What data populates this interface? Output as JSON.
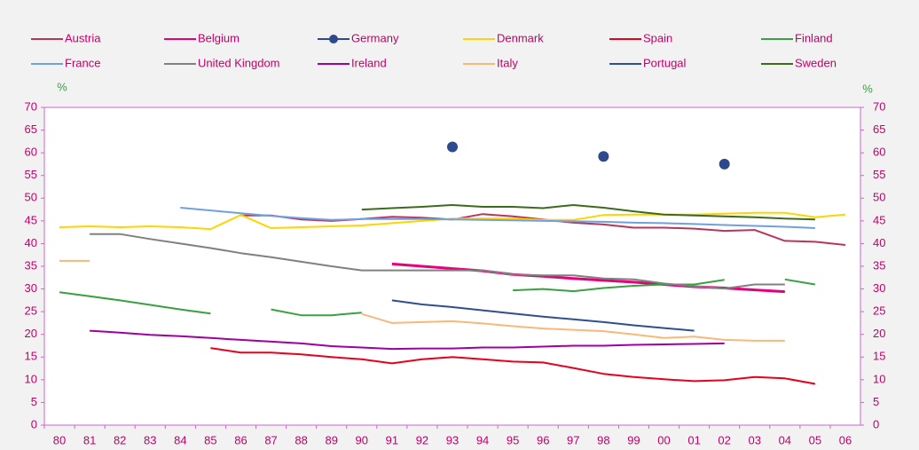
{
  "chart_data": {
    "type": "line",
    "categories": [
      "80",
      "81",
      "82",
      "83",
      "84",
      "85",
      "86",
      "87",
      "88",
      "89",
      "90",
      "91",
      "92",
      "93",
      "94",
      "95",
      "96",
      "97",
      "98",
      "99",
      "00",
      "01",
      "02",
      "03",
      "04",
      "05",
      "06"
    ],
    "y_label": "%",
    "y2_label": "%",
    "ylim": [
      0,
      70
    ],
    "yticks": [
      0,
      5,
      10,
      15,
      20,
      25,
      30,
      35,
      40,
      45,
      50,
      55,
      60,
      65,
      70
    ],
    "y2lim": [
      0,
      70
    ],
    "y2ticks": [
      0,
      5,
      10,
      15,
      20,
      25,
      30,
      35,
      40,
      45,
      50,
      55,
      60,
      65,
      70
    ],
    "series": [
      {
        "name": "Austria",
        "color": "#b8355e",
        "values": [
          null,
          null,
          null,
          null,
          null,
          null,
          46.2,
          46.2,
          45.3,
          45.0,
          45.4,
          45.9,
          45.7,
          45.3,
          46.5,
          46.0,
          45.3,
          44.6,
          44.2,
          43.5,
          43.5,
          43.3,
          42.8,
          43.0,
          40.6,
          40.4,
          39.7
        ]
      },
      {
        "name": "Belgium",
        "color": "#e6007e",
        "values": [
          null,
          null,
          null,
          null,
          null,
          null,
          null,
          null,
          null,
          null,
          null,
          35.5,
          35.0,
          34.5,
          34.0,
          33.2,
          32.8,
          32.3,
          31.9,
          31.5,
          31.0,
          30.5,
          30.2,
          29.8,
          29.4,
          null,
          null
        ]
      },
      {
        "name": "Germany",
        "color": "#2e4a8c",
        "marker": true,
        "line": false,
        "values": [
          null,
          null,
          null,
          null,
          null,
          null,
          null,
          null,
          null,
          null,
          null,
          null,
          null,
          61.3,
          null,
          null,
          null,
          null,
          59.2,
          null,
          null,
          null,
          57.5,
          null,
          null,
          null,
          null
        ]
      },
      {
        "name": "Denmark",
        "color": "#ffd400",
        "values": [
          43.6,
          43.8,
          43.6,
          43.8,
          43.6,
          43.2,
          46.3,
          43.4,
          43.6,
          43.8,
          44.0,
          44.5,
          45.0,
          45.5,
          45.5,
          45.5,
          45.2,
          45.2,
          46.3,
          46.4,
          46.4,
          46.4,
          46.6,
          46.8,
          46.8,
          45.8,
          46.4
        ]
      },
      {
        "name": "Spain",
        "color": "#e8001c",
        "values": [
          null,
          null,
          null,
          null,
          null,
          17.0,
          16.0,
          16.0,
          15.6,
          15.0,
          14.5,
          13.6,
          14.5,
          15.0,
          14.5,
          14.0,
          13.8,
          12.6,
          11.3,
          10.6,
          10.1,
          9.7,
          9.9,
          10.6,
          10.3,
          9.1,
          null
        ]
      },
      {
        "name": "Finland",
        "color": "#3aa040",
        "values": [
          29.3,
          28.4,
          27.5,
          26.5,
          25.5,
          24.6,
          null,
          25.5,
          24.2,
          24.2,
          24.8,
          null,
          null,
          null,
          null,
          29.7,
          30.0,
          29.5,
          30.2,
          30.7,
          31.0,
          31.0,
          32.0,
          null,
          32.1,
          31.0,
          null
        ]
      },
      {
        "name": "France",
        "color": "#6fa0e0",
        "values": [
          null,
          null,
          null,
          null,
          47.9,
          47.3,
          46.7,
          46.1,
          45.6,
          45.2,
          45.4,
          45.4,
          45.4,
          45.3,
          45.2,
          45.1,
          45.0,
          44.9,
          44.8,
          44.6,
          44.5,
          44.3,
          44.1,
          43.9,
          43.7,
          43.4,
          null
        ]
      },
      {
        "name": "United Kingdom",
        "color": "#808080",
        "values": [
          null,
          42.1,
          42.1,
          41.0,
          40.0,
          39.0,
          37.9,
          37.0,
          36.0,
          35.0,
          34.1,
          34.1,
          34.1,
          34.1,
          34.1,
          33.2,
          33.0,
          33.0,
          32.3,
          32.1,
          31.2,
          30.6,
          30.1,
          31.0,
          31.0,
          null,
          null
        ]
      },
      {
        "name": "Ireland",
        "color": "#a000a0",
        "values": [
          null,
          20.8,
          20.4,
          19.9,
          19.6,
          19.2,
          18.8,
          18.4,
          18.0,
          17.4,
          17.1,
          16.8,
          16.9,
          16.9,
          17.1,
          17.1,
          17.3,
          17.5,
          17.5,
          17.7,
          17.8,
          17.9,
          18.0,
          null,
          null,
          null,
          null
        ]
      },
      {
        "name": "Italy",
        "color": "#f8b878",
        "values": [
          36.2,
          36.2,
          null,
          null,
          null,
          null,
          null,
          null,
          null,
          null,
          24.5,
          22.5,
          22.7,
          22.9,
          22.4,
          21.8,
          21.3,
          21.0,
          20.7,
          20.0,
          19.2,
          19.5,
          18.8,
          18.6,
          18.6,
          null,
          null
        ]
      },
      {
        "name": "Portugal",
        "color": "#2f4f8f",
        "values": [
          null,
          null,
          null,
          null,
          null,
          null,
          null,
          null,
          null,
          null,
          null,
          27.5,
          26.6,
          26.0,
          25.3,
          24.6,
          23.9,
          23.3,
          22.7,
          22.0,
          21.4,
          20.8,
          null,
          null,
          null,
          null,
          null
        ]
      },
      {
        "name": "Sweden",
        "color": "#3d6b1e",
        "values": [
          null,
          null,
          null,
          null,
          null,
          null,
          null,
          null,
          null,
          null,
          47.5,
          47.8,
          48.1,
          48.5,
          48.1,
          48.1,
          47.8,
          48.5,
          47.9,
          47.1,
          46.4,
          46.2,
          46.0,
          45.8,
          45.5,
          45.3,
          null
        ]
      }
    ]
  }
}
